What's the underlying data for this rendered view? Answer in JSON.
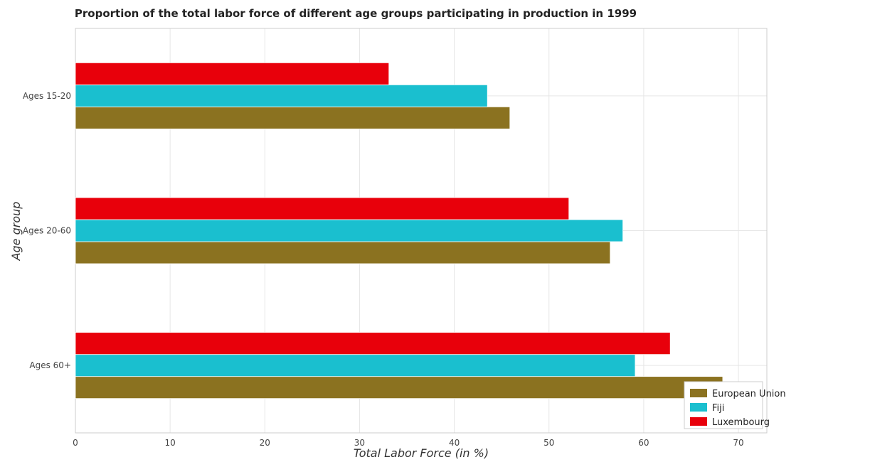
{
  "chart_data": {
    "type": "bar",
    "orientation": "horizontal",
    "title": "Proportion of the total labor force of different age groups participating in production in 1999",
    "xlabel": "Total Labor Force (in %)",
    "ylabel": "Age group",
    "xlim": [
      0,
      73
    ],
    "xticks": [
      0,
      10,
      20,
      30,
      40,
      50,
      60,
      70
    ],
    "grid": true,
    "legend_position": "bottom-right",
    "categories": [
      "Ages 15-20",
      "Ages 20-60",
      "Ages 60+"
    ],
    "series": [
      {
        "name": "European Union",
        "color": "#8B7220",
        "values": [
          45.87,
          56.46,
          68.34
        ]
      },
      {
        "name": "Fiji",
        "color": "#1ABFCF",
        "values": [
          43.5,
          57.8,
          59.1
        ]
      },
      {
        "name": "Luxembourg",
        "color": "#E8000B",
        "values": [
          33.1,
          52.1,
          62.8
        ]
      }
    ]
  }
}
